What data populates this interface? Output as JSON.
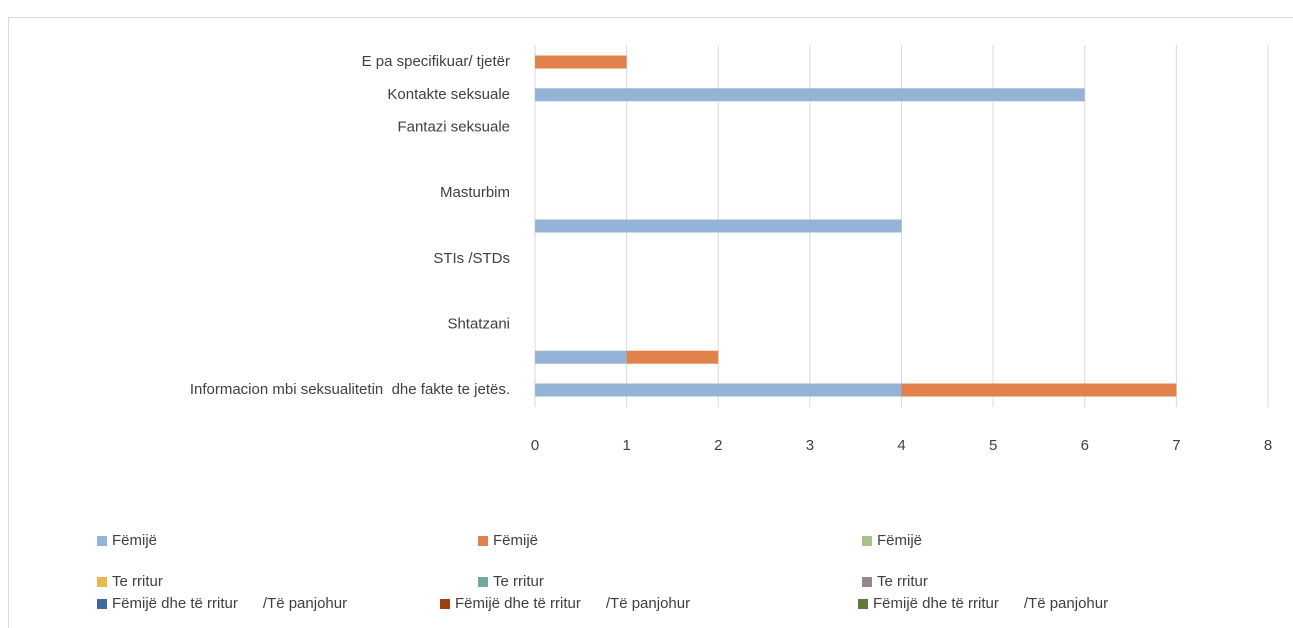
{
  "chart_data": {
    "type": "bar",
    "orientation": "horizontal",
    "stacked": true,
    "categories": [
      "Informacion mbi seksualitetin  dhe fakte te jetës.",
      null,
      "Shtatzani",
      null,
      "STIs /STDs",
      null,
      "Masturbim",
      null,
      "Fantazi seksuale",
      "Kontakte seksuale",
      "E pa specifikuar/ tjetër"
    ],
    "series": [
      {
        "name": "Fëmijë",
        "color": "#95b3d7",
        "values": [
          4,
          1,
          null,
          null,
          null,
          4,
          null,
          null,
          null,
          6,
          null
        ]
      },
      {
        "name": "Fëmijë",
        "color": "#e0824a",
        "values": [
          3,
          1,
          null,
          null,
          null,
          null,
          null,
          null,
          null,
          null,
          1
        ]
      },
      {
        "name": "Fëmijë",
        "color": "#a9bf8e",
        "values": [
          null,
          null,
          null,
          null,
          null,
          null,
          null,
          null,
          null,
          null,
          null
        ]
      },
      {
        "name": "Te rritur",
        "color": "#e8b84a",
        "values": [
          null,
          null,
          null,
          null,
          null,
          null,
          null,
          null,
          null,
          null,
          null
        ]
      },
      {
        "name": "Te rritur",
        "color": "#6fab9b",
        "values": [
          null,
          null,
          null,
          null,
          null,
          null,
          null,
          null,
          null,
          null,
          null
        ]
      },
      {
        "name": "Te rritur",
        "color": "#948a8a",
        "values": [
          null,
          null,
          null,
          null,
          null,
          null,
          null,
          null,
          null,
          null,
          null
        ]
      },
      {
        "name": "Fëmijë dhe të rritur      /Të panjohur",
        "color": "#3d6a9c",
        "values": [
          null,
          null,
          null,
          null,
          null,
          null,
          null,
          null,
          null,
          null,
          null
        ]
      },
      {
        "name": "Fëmijë dhe të rritur      /Të panjohur",
        "color": "#9c4012",
        "values": [
          null,
          null,
          null,
          null,
          null,
          null,
          null,
          null,
          null,
          null,
          null
        ]
      },
      {
        "name": "Fëmijë dhe të rritur      /Të panjohur",
        "color": "#5f7a3c",
        "values": [
          null,
          null,
          null,
          null,
          null,
          null,
          null,
          null,
          null,
          null,
          null
        ]
      }
    ],
    "xlim": [
      0,
      8
    ],
    "xticks": [
      0,
      1,
      2,
      3,
      4,
      5,
      6,
      7,
      8
    ],
    "grid": true,
    "legend": "bottom"
  }
}
